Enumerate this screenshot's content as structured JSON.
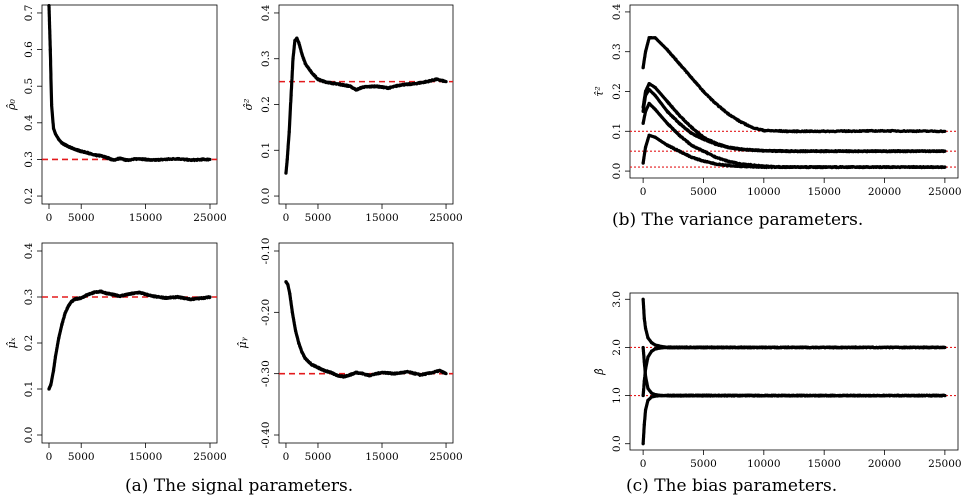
{
  "captions": {
    "a": "(a) The signal parameters.",
    "b": "(b) The variance parameters.",
    "c": "(c) The bias parameters."
  },
  "colors": {
    "trace": "#000000",
    "reference": "#e31a1c",
    "axis": "#000000"
  },
  "chart_data": [
    {
      "id": "rho0",
      "type": "scatter",
      "ylabel": "ρ̂₀",
      "xlim": [
        0,
        25000
      ],
      "ylim": [
        0.2,
        0.7
      ],
      "xticks": [
        0,
        5000,
        15000,
        25000
      ],
      "xtick_labels": [
        "0",
        "5000",
        "15000",
        "25000"
      ],
      "yticks": [
        0.2,
        0.3,
        0.4,
        0.5,
        0.6,
        0.7
      ],
      "ytick_labels": [
        "0.2",
        "0.3",
        "0.4",
        "0.5",
        "0.6",
        "0.7"
      ],
      "reference": [
        {
          "y": 0.3,
          "style": "dashed"
        }
      ],
      "series": [
        {
          "x": [
            0,
            200,
            400,
            700,
            1000,
            1500,
            2000,
            3000,
            4000,
            5000,
            6000,
            7000,
            8000,
            9000,
            10000,
            11000,
            12000,
            14000,
            16000,
            18000,
            20000,
            22000,
            24000,
            25000
          ],
          "y": [
            0.72,
            0.6,
            0.45,
            0.385,
            0.37,
            0.355,
            0.345,
            0.335,
            0.328,
            0.322,
            0.318,
            0.312,
            0.31,
            0.305,
            0.298,
            0.303,
            0.298,
            0.302,
            0.298,
            0.3,
            0.302,
            0.298,
            0.3,
            0.3
          ]
        }
      ]
    },
    {
      "id": "sigma2",
      "type": "scatter",
      "ylabel": "σ̂²",
      "xlim": [
        0,
        25000
      ],
      "ylim": [
        0.0,
        0.4
      ],
      "xticks": [
        0,
        5000,
        15000,
        25000
      ],
      "xtick_labels": [
        "0",
        "5000",
        "15000",
        "25000"
      ],
      "yticks": [
        0.0,
        0.1,
        0.2,
        0.3,
        0.4
      ],
      "ytick_labels": [
        "0.0",
        "0.1",
        "0.2",
        "0.3",
        "0.4"
      ],
      "reference": [
        {
          "y": 0.25,
          "style": "dashed"
        }
      ],
      "series": [
        {
          "x": [
            0,
            200,
            500,
            800,
            1100,
            1400,
            1700,
            2000,
            2500,
            3000,
            4000,
            5000,
            6000,
            7000,
            8000,
            10000,
            11000,
            12000,
            14000,
            16000,
            18000,
            20000,
            22000,
            23500,
            25000
          ],
          "y": [
            0.05,
            0.08,
            0.14,
            0.22,
            0.3,
            0.34,
            0.345,
            0.335,
            0.31,
            0.29,
            0.27,
            0.255,
            0.25,
            0.247,
            0.245,
            0.24,
            0.232,
            0.238,
            0.24,
            0.236,
            0.243,
            0.245,
            0.25,
            0.255,
            0.25
          ]
        }
      ]
    },
    {
      "id": "mux",
      "type": "scatter",
      "ylabel": "μ̂ₓ",
      "xlim": [
        0,
        25000
      ],
      "ylim": [
        0.0,
        0.4
      ],
      "xticks": [
        0,
        5000,
        15000,
        25000
      ],
      "xtick_labels": [
        "0",
        "5000",
        "15000",
        "25000"
      ],
      "yticks": [
        0.0,
        0.1,
        0.2,
        0.3,
        0.4
      ],
      "ytick_labels": [
        "0.0",
        "0.1",
        "0.2",
        "0.3",
        "0.4"
      ],
      "reference": [
        {
          "y": 0.3,
          "style": "dashed"
        }
      ],
      "series": [
        {
          "x": [
            0,
            300,
            700,
            1000,
            1500,
            2000,
            2500,
            3000,
            3500,
            4000,
            5000,
            6000,
            7000,
            8000,
            9000,
            10000,
            11000,
            12000,
            14000,
            16000,
            18000,
            20000,
            22000,
            24000,
            25000
          ],
          "y": [
            0.1,
            0.11,
            0.14,
            0.17,
            0.21,
            0.24,
            0.265,
            0.28,
            0.29,
            0.295,
            0.298,
            0.305,
            0.31,
            0.312,
            0.308,
            0.305,
            0.302,
            0.305,
            0.31,
            0.302,
            0.298,
            0.3,
            0.295,
            0.298,
            0.3
          ]
        }
      ]
    },
    {
      "id": "muy",
      "type": "scatter",
      "ylabel": "μ̂ᵧ",
      "xlim": [
        0,
        25000
      ],
      "ylim": [
        -0.4,
        -0.1
      ],
      "xticks": [
        0,
        5000,
        15000,
        25000
      ],
      "xtick_labels": [
        "0",
        "5000",
        "15000",
        "25000"
      ],
      "yticks": [
        -0.4,
        -0.3,
        -0.2,
        -0.1
      ],
      "ytick_labels": [
        "-0.40",
        "-0.30",
        "-0.20",
        "-0.10"
      ],
      "reference": [
        {
          "y": -0.3,
          "style": "dashed"
        }
      ],
      "series": [
        {
          "x": [
            0,
            300,
            600,
            1000,
            1500,
            2000,
            2500,
            3000,
            4000,
            5000,
            6000,
            7000,
            8000,
            9000,
            10000,
            11000,
            12000,
            13000,
            15000,
            17000,
            19000,
            21000,
            23000,
            24000,
            25000
          ],
          "y": [
            -0.15,
            -0.155,
            -0.17,
            -0.2,
            -0.23,
            -0.25,
            -0.265,
            -0.275,
            -0.285,
            -0.29,
            -0.295,
            -0.298,
            -0.303,
            -0.305,
            -0.302,
            -0.298,
            -0.3,
            -0.303,
            -0.298,
            -0.3,
            -0.297,
            -0.302,
            -0.298,
            -0.295,
            -0.3
          ]
        }
      ]
    },
    {
      "id": "tau2",
      "type": "scatter",
      "ylabel": "τ̂²",
      "xlim": [
        0,
        25000
      ],
      "ylim": [
        0.0,
        0.4
      ],
      "xticks": [
        0,
        5000,
        10000,
        15000,
        20000,
        25000
      ],
      "xtick_labels": [
        "0",
        "5000",
        "10000",
        "15000",
        "20000",
        "25000"
      ],
      "yticks": [
        0.0,
        0.1,
        0.2,
        0.3,
        0.4
      ],
      "ytick_labels": [
        "0.0",
        "0.1",
        "0.2",
        "0.3",
        "0.4"
      ],
      "reference": [
        {
          "y": 0.1,
          "style": "dotted"
        },
        {
          "y": 0.05,
          "style": "dotted"
        },
        {
          "y": 0.01,
          "style": "dotted"
        }
      ],
      "series": [
        {
          "x": [
            0,
            200,
            500,
            1000,
            2000,
            3000,
            4000,
            5000,
            6000,
            7000,
            8000,
            9000,
            10000,
            12000,
            15000,
            20000,
            25000
          ],
          "y": [
            0.26,
            0.3,
            0.335,
            0.335,
            0.305,
            0.27,
            0.235,
            0.2,
            0.17,
            0.145,
            0.125,
            0.11,
            0.102,
            0.1,
            0.1,
            0.101,
            0.1
          ]
        },
        {
          "x": [
            0,
            200,
            500,
            1000,
            2000,
            3000,
            4000,
            5000,
            6000,
            7000,
            8000,
            10000,
            12000,
            15000,
            20000,
            25000
          ],
          "y": [
            0.16,
            0.2,
            0.22,
            0.21,
            0.175,
            0.14,
            0.11,
            0.085,
            0.07,
            0.06,
            0.055,
            0.051,
            0.05,
            0.05,
            0.05,
            0.05
          ]
        },
        {
          "x": [
            0,
            200,
            500,
            1000,
            2000,
            3000,
            4000,
            5000,
            6000,
            7000,
            8000,
            10000,
            12000,
            15000,
            20000,
            25000
          ],
          "y": [
            0.15,
            0.19,
            0.205,
            0.19,
            0.15,
            0.12,
            0.095,
            0.08,
            0.068,
            0.06,
            0.055,
            0.051,
            0.05,
            0.05,
            0.05,
            0.05
          ]
        },
        {
          "x": [
            0,
            200,
            500,
            1000,
            2000,
            3000,
            4000,
            5000,
            6000,
            7000,
            8000,
            10000,
            12000,
            15000,
            20000,
            25000
          ],
          "y": [
            0.12,
            0.15,
            0.17,
            0.155,
            0.12,
            0.09,
            0.065,
            0.05,
            0.035,
            0.025,
            0.018,
            0.012,
            0.01,
            0.01,
            0.01,
            0.01
          ]
        },
        {
          "x": [
            0,
            200,
            500,
            1000,
            2000,
            3000,
            4000,
            5000,
            6000,
            7000,
            8000,
            10000,
            12000,
            15000,
            20000,
            25000
          ],
          "y": [
            0.02,
            0.06,
            0.09,
            0.085,
            0.065,
            0.05,
            0.035,
            0.025,
            0.018,
            0.014,
            0.012,
            0.01,
            0.01,
            0.01,
            0.01,
            0.01
          ]
        }
      ]
    },
    {
      "id": "beta",
      "type": "scatter",
      "ylabel": "β̂",
      "xlim": [
        0,
        25000
      ],
      "ylim": [
        0.0,
        3.0
      ],
      "xticks": [
        0,
        5000,
        10000,
        15000,
        20000,
        25000
      ],
      "xtick_labels": [
        "0",
        "5000",
        "10000",
        "15000",
        "20000",
        "25000"
      ],
      "yticks": [
        0.0,
        1.0,
        2.0,
        3.0
      ],
      "ytick_labels": [
        "0.0",
        "1.0",
        "2.0",
        "3.0"
      ],
      "reference": [
        {
          "y": 2.0,
          "style": "dotted"
        },
        {
          "y": 1.0,
          "style": "dotted"
        }
      ],
      "series": [
        {
          "x": [
            0,
            100,
            200,
            400,
            700,
            1000,
            1500,
            2000,
            3000,
            5000,
            10000,
            15000,
            20000,
            25000
          ],
          "y": [
            3.0,
            2.6,
            2.4,
            2.2,
            2.1,
            2.05,
            2.02,
            2.0,
            2.0,
            2.0,
            2.0,
            2.0,
            2.0,
            2.0
          ]
        },
        {
          "x": [
            0,
            100,
            200,
            400,
            700,
            1000,
            1500,
            2000,
            3000,
            5000,
            10000,
            15000,
            20000,
            25000
          ],
          "y": [
            1.0,
            1.3,
            1.55,
            1.8,
            1.92,
            1.97,
            1.99,
            2.0,
            2.0,
            2.0,
            2.0,
            2.0,
            2.0,
            2.0
          ]
        },
        {
          "x": [
            0,
            100,
            200,
            400,
            700,
            1000,
            1500,
            2000,
            3000,
            5000,
            10000,
            15000,
            20000,
            25000
          ],
          "y": [
            2.0,
            1.7,
            1.4,
            1.15,
            1.05,
            1.02,
            1.0,
            1.0,
            1.0,
            1.0,
            1.0,
            1.0,
            1.0,
            1.0
          ]
        },
        {
          "x": [
            0,
            100,
            200,
            400,
            700,
            1000,
            1500,
            2000,
            3000,
            5000,
            10000,
            15000,
            20000,
            25000
          ],
          "y": [
            0.0,
            0.4,
            0.7,
            0.9,
            0.97,
            0.99,
            1.0,
            1.0,
            1.0,
            1.0,
            1.0,
            1.0,
            1.0,
            1.0
          ]
        }
      ]
    }
  ]
}
